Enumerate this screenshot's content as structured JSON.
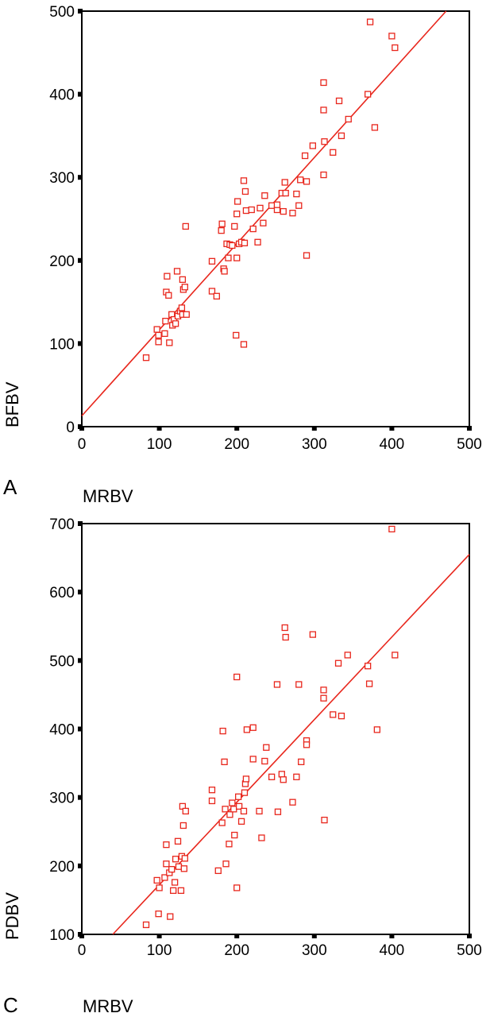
{
  "chart_data": [
    {
      "type": "scatter",
      "panel_label": "A",
      "xlabel": "MRBV",
      "ylabel": "BFBV",
      "xlim": [
        0,
        500
      ],
      "ylim": [
        0,
        500
      ],
      "x_ticks": [
        0,
        100,
        200,
        300,
        400,
        500
      ],
      "y_ticks": [
        0,
        100,
        200,
        300,
        400,
        500
      ],
      "marker_color": "#e8261c",
      "fit_color": "#e8261c",
      "fit_line": {
        "x": [
          0,
          470
        ],
        "y": [
          13,
          500
        ]
      },
      "points": [
        [
          83,
          83
        ],
        [
          97,
          117
        ],
        [
          99,
          102
        ],
        [
          99,
          110
        ],
        [
          107,
          112
        ],
        [
          108,
          127
        ],
        [
          109,
          162
        ],
        [
          110,
          181
        ],
        [
          112,
          158
        ],
        [
          113,
          101
        ],
        [
          116,
          135
        ],
        [
          117,
          122
        ],
        [
          119,
          129
        ],
        [
          121,
          124
        ],
        [
          123,
          187
        ],
        [
          124,
          133
        ],
        [
          127,
          139
        ],
        [
          129,
          143
        ],
        [
          130,
          177
        ],
        [
          130,
          135
        ],
        [
          131,
          165
        ],
        [
          133,
          168
        ],
        [
          134,
          241
        ],
        [
          135,
          135
        ],
        [
          168,
          199
        ],
        [
          168,
          163
        ],
        [
          174,
          157
        ],
        [
          180,
          236
        ],
        [
          181,
          244
        ],
        [
          183,
          190
        ],
        [
          184,
          187
        ],
        [
          187,
          220
        ],
        [
          189,
          203
        ],
        [
          191,
          219
        ],
        [
          194,
          218
        ],
        [
          197,
          241
        ],
        [
          199,
          110
        ],
        [
          200,
          256
        ],
        [
          200,
          203
        ],
        [
          201,
          271
        ],
        [
          203,
          220
        ],
        [
          206,
          222
        ],
        [
          209,
          99
        ],
        [
          209,
          296
        ],
        [
          210,
          221
        ],
        [
          211,
          283
        ],
        [
          212,
          260
        ],
        [
          219,
          261
        ],
        [
          221,
          238
        ],
        [
          227,
          222
        ],
        [
          230,
          263
        ],
        [
          234,
          245
        ],
        [
          236,
          278
        ],
        [
          245,
          266
        ],
        [
          252,
          261
        ],
        [
          252,
          267
        ],
        [
          258,
          281
        ],
        [
          260,
          259
        ],
        [
          262,
          294
        ],
        [
          263,
          281
        ],
        [
          272,
          257
        ],
        [
          277,
          280
        ],
        [
          280,
          266
        ],
        [
          282,
          297
        ],
        [
          288,
          326
        ],
        [
          290,
          295
        ],
        [
          290,
          206
        ],
        [
          298,
          338
        ],
        [
          312,
          414
        ],
        [
          312,
          381
        ],
        [
          313,
          343
        ],
        [
          312,
          303
        ],
        [
          324,
          330
        ],
        [
          332,
          392
        ],
        [
          335,
          350
        ],
        [
          344,
          370
        ],
        [
          369,
          400
        ],
        [
          372,
          487
        ],
        [
          378,
          360
        ],
        [
          400,
          470
        ],
        [
          404,
          456
        ]
      ]
    },
    {
      "type": "scatter",
      "panel_label": "C",
      "xlabel": "MRBV",
      "ylabel": "PDBV",
      "xlim": [
        0,
        500
      ],
      "ylim": [
        100,
        700
      ],
      "x_ticks": [
        0,
        100,
        200,
        300,
        400,
        500
      ],
      "y_ticks": [
        100,
        200,
        300,
        400,
        500,
        600,
        700
      ],
      "marker_color": "#e8261c",
      "fit_color": "#e8261c",
      "fit_line": {
        "x": [
          40,
          500
        ],
        "y": [
          100,
          655
        ]
      },
      "points": [
        [
          83,
          114
        ],
        [
          97,
          179
        ],
        [
          100,
          168
        ],
        [
          99,
          130
        ],
        [
          107,
          183
        ],
        [
          109,
          231
        ],
        [
          109,
          203
        ],
        [
          113,
          190
        ],
        [
          114,
          126
        ],
        [
          116,
          195
        ],
        [
          118,
          164
        ],
        [
          120,
          176
        ],
        [
          121,
          210
        ],
        [
          124,
          236
        ],
        [
          125,
          199
        ],
        [
          128,
          164
        ],
        [
          129,
          214
        ],
        [
          130,
          287
        ],
        [
          131,
          259
        ],
        [
          132,
          196
        ],
        [
          133,
          211
        ],
        [
          134,
          280
        ],
        [
          168,
          311
        ],
        [
          168,
          295
        ],
        [
          176,
          193
        ],
        [
          181,
          263
        ],
        [
          182,
          397
        ],
        [
          184,
          352
        ],
        [
          185,
          283
        ],
        [
          186,
          203
        ],
        [
          190,
          232
        ],
        [
          191,
          275
        ],
        [
          194,
          292
        ],
        [
          196,
          283
        ],
        [
          197,
          245
        ],
        [
          200,
          168
        ],
        [
          200,
          476
        ],
        [
          202,
          301
        ],
        [
          203,
          287
        ],
        [
          206,
          265
        ],
        [
          209,
          280
        ],
        [
          210,
          307
        ],
        [
          211,
          320
        ],
        [
          212,
          327
        ],
        [
          213,
          399
        ],
        [
          221,
          356
        ],
        [
          221,
          402
        ],
        [
          229,
          280
        ],
        [
          232,
          241
        ],
        [
          236,
          353
        ],
        [
          238,
          373
        ],
        [
          245,
          330
        ],
        [
          252,
          465
        ],
        [
          253,
          279
        ],
        [
          258,
          334
        ],
        [
          260,
          326
        ],
        [
          262,
          548
        ],
        [
          263,
          534
        ],
        [
          272,
          293
        ],
        [
          277,
          330
        ],
        [
          280,
          465
        ],
        [
          283,
          352
        ],
        [
          290,
          383
        ],
        [
          290,
          377
        ],
        [
          298,
          538
        ],
        [
          312,
          457
        ],
        [
          312,
          445
        ],
        [
          313,
          267
        ],
        [
          324,
          421
        ],
        [
          331,
          496
        ],
        [
          335,
          419
        ],
        [
          343,
          508
        ],
        [
          369,
          492
        ],
        [
          371,
          466
        ],
        [
          381,
          399
        ],
        [
          400,
          692
        ],
        [
          404,
          508
        ]
      ]
    }
  ]
}
